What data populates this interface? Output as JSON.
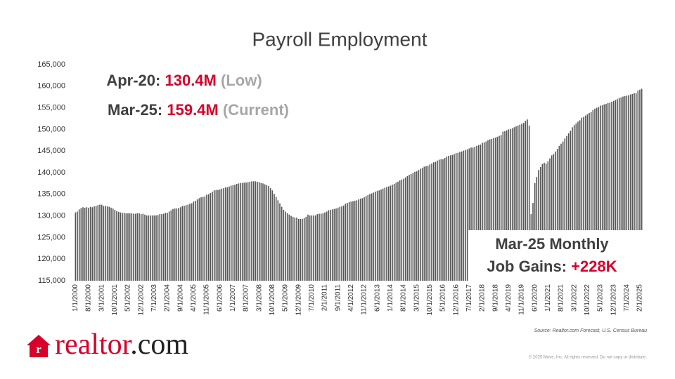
{
  "chart_data": {
    "type": "bar",
    "title": "Payroll Employment",
    "categories": [
      "1/1/2000",
      null,
      null,
      null,
      null,
      null,
      null,
      "8/1/2000",
      null,
      null,
      null,
      null,
      null,
      null,
      "3/1/2001",
      null,
      null,
      null,
      null,
      null,
      null,
      "10/1/2001",
      null,
      null,
      null,
      null,
      null,
      null,
      "5/1/2002",
      null,
      null,
      null,
      null,
      null,
      null,
      "12/1/2002",
      null,
      null,
      null,
      null,
      null,
      null,
      "7/1/2003",
      null,
      null,
      null,
      null,
      null,
      null,
      "2/1/2004",
      null,
      null,
      null,
      null,
      null,
      null,
      "9/1/2004",
      null,
      null,
      null,
      null,
      null,
      null,
      "4/1/2005",
      null,
      null,
      null,
      null,
      null,
      null,
      "11/1/2005",
      null,
      null,
      null,
      null,
      null,
      null,
      "6/1/2006",
      null,
      null,
      null,
      null,
      null,
      null,
      "1/1/2007",
      null,
      null,
      null,
      null,
      null,
      null,
      "8/1/2007",
      null,
      null,
      null,
      null,
      null,
      null,
      "3/1/2008",
      null,
      null,
      null,
      null,
      null,
      null,
      "10/1/2008",
      null,
      null,
      null,
      null,
      null,
      null,
      "5/1/2009",
      null,
      null,
      null,
      null,
      null,
      null,
      "12/1/2009",
      null,
      null,
      null,
      null,
      null,
      null,
      "7/1/2010",
      null,
      null,
      null,
      null,
      null,
      null,
      "2/1/2011",
      null,
      null,
      null,
      null,
      null,
      null,
      "9/1/2011",
      null,
      null,
      null,
      null,
      null,
      null,
      "4/1/2012",
      null,
      null,
      null,
      null,
      null,
      null,
      "11/1/2012",
      null,
      null,
      null,
      null,
      null,
      null,
      "6/1/2013",
      null,
      null,
      null,
      null,
      null,
      null,
      "1/1/2014",
      null,
      null,
      null,
      null,
      null,
      null,
      "8/1/2014",
      null,
      null,
      null,
      null,
      null,
      null,
      "3/1/2015",
      null,
      null,
      null,
      null,
      null,
      null,
      "10/1/2015",
      null,
      null,
      null,
      null,
      null,
      null,
      "5/1/2016",
      null,
      null,
      null,
      null,
      null,
      null,
      "12/1/2016",
      null,
      null,
      null,
      null,
      null,
      null,
      "7/1/2017",
      null,
      null,
      null,
      null,
      null,
      null,
      "2/1/2018",
      null,
      null,
      null,
      null,
      null,
      null,
      "9/1/2018",
      null,
      null,
      null,
      null,
      null,
      null,
      "4/1/2019",
      null,
      null,
      null,
      null,
      null,
      null,
      "11/1/2019",
      null,
      null,
      null,
      null,
      null,
      null,
      "6/1/2020",
      null,
      null,
      null,
      null,
      null,
      null,
      "1/1/2021",
      null,
      null,
      null,
      null,
      null,
      null,
      "8/1/2021",
      null,
      null,
      null,
      null,
      null,
      null,
      "3/1/2022",
      null,
      null,
      null,
      null,
      null,
      null,
      "10/1/2022",
      null,
      null,
      null,
      null,
      null,
      null,
      "5/1/2023",
      null,
      null,
      null,
      null,
      null,
      null,
      "12/1/2023",
      null,
      null,
      null,
      null,
      null,
      null,
      "7/1/2024",
      null,
      null,
      null,
      null,
      null,
      null,
      "2/1/2025",
      null
    ],
    "values": [
      130800,
      131000,
      131500,
      131800,
      132000,
      131900,
      132000,
      131900,
      132100,
      132000,
      132200,
      132300,
      132500,
      132600,
      132600,
      132300,
      132300,
      132200,
      132100,
      131900,
      131700,
      131400,
      131100,
      130900,
      130800,
      130700,
      130700,
      130600,
      130600,
      130600,
      130600,
      130500,
      130500,
      130600,
      130600,
      130400,
      130500,
      130300,
      130100,
      130100,
      130100,
      130100,
      130100,
      130100,
      130200,
      130400,
      130400,
      130500,
      130700,
      130700,
      131000,
      131300,
      131600,
      131700,
      131700,
      131800,
      132000,
      132300,
      132300,
      132500,
      132600,
      132800,
      132900,
      133300,
      133500,
      133800,
      134100,
      134300,
      134400,
      134500,
      134900,
      135000,
      135300,
      135600,
      135900,
      136000,
      136000,
      136100,
      136300,
      136400,
      136600,
      136600,
      136800,
      137000,
      137100,
      137200,
      137400,
      137500,
      137600,
      137600,
      137700,
      137700,
      137800,
      137900,
      138000,
      138000,
      138000,
      137900,
      137800,
      137600,
      137500,
      137300,
      137100,
      136900,
      136400,
      135900,
      135100,
      134400,
      133600,
      132900,
      132100,
      131400,
      131000,
      130600,
      130300,
      130000,
      129800,
      129600,
      129600,
      129300,
      129300,
      129300,
      129500,
      129800,
      130300,
      130100,
      130100,
      130100,
      130100,
      130400,
      130500,
      130500,
      130600,
      130800,
      131000,
      131300,
      131400,
      131500,
      131600,
      131700,
      131900,
      132100,
      132200,
      132400,
      132800,
      133000,
      133200,
      133300,
      133400,
      133500,
      133600,
      133800,
      134000,
      134100,
      134300,
      134600,
      134800,
      135100,
      135200,
      135400,
      135600,
      135800,
      135900,
      136100,
      136300,
      136500,
      136700,
      136800,
      137000,
      137200,
      137400,
      137700,
      137900,
      138200,
      138400,
      138600,
      138900,
      139200,
      139500,
      139700,
      139900,
      140200,
      140300,
      140600,
      140900,
      141100,
      141400,
      141500,
      141600,
      141900,
      142100,
      142400,
      142500,
      142800,
      143000,
      143100,
      143100,
      143400,
      143700,
      143900,
      144000,
      144100,
      144300,
      144500,
      144600,
      144800,
      144900,
      145100,
      145200,
      145400,
      145600,
      145800,
      145800,
      146000,
      146200,
      146400,
      146500,
      146900,
      147000,
      147200,
      147500,
      147700,
      147800,
      148000,
      148100,
      148300,
      148500,
      148700,
      149500,
      149600,
      149800,
      150000,
      150100,
      150300,
      150500,
      150700,
      150900,
      151100,
      151300,
      151500,
      152000,
      152300,
      150900,
      130400,
      133000,
      137600,
      139000,
      140600,
      141300,
      142000,
      142300,
      142100,
      142600,
      143300,
      144000,
      144300,
      144900,
      145500,
      146200,
      146700,
      147200,
      147900,
      148500,
      149100,
      149700,
      150500,
      151000,
      151400,
      151800,
      152100,
      152700,
      152900,
      153200,
      153500,
      153800,
      154000,
      154500,
      154800,
      155000,
      155200,
      155500,
      155600,
      155800,
      155900,
      156100,
      156200,
      156400,
      156600,
      156800,
      157000,
      157300,
      157400,
      157600,
      157700,
      157800,
      157900,
      158100,
      158200,
      158400,
      158400,
      159000,
      159200,
      159400
    ],
    "color": "#555555",
    "ylim": [
      115000,
      165000
    ],
    "yticks": [
      {
        "value": 115000,
        "label": "115,000"
      },
      {
        "value": 120000,
        "label": "120,000"
      },
      {
        "value": 125000,
        "label": "125,000"
      },
      {
        "value": 130000,
        "label": "130,000"
      },
      {
        "value": 135000,
        "label": "135,000"
      },
      {
        "value": 140000,
        "label": "140,000"
      },
      {
        "value": 145000,
        "label": "145,000"
      },
      {
        "value": 150000,
        "label": "150,000"
      },
      {
        "value": 155000,
        "label": "155,000"
      },
      {
        "value": 160000,
        "label": "160,000"
      },
      {
        "value": 165000,
        "label": "165,000"
      }
    ],
    "annotations": [
      {
        "label": "Apr-20:",
        "value": "130.4M",
        "note": "(Low)"
      },
      {
        "label": "Mar-25:",
        "value": "159.4M",
        "note": "(Current)"
      }
    ],
    "callout": {
      "line1": "Mar-25 Monthly",
      "label": "Job Gains:",
      "value": "+228K"
    },
    "source": "Source: Realtor.com Forecast, U.S. Census Bureau"
  },
  "logo": {
    "name": "realtor",
    "suffix": ".com"
  },
  "copyright": "© 2025 Move, Inc. All rights reserved. Do not copy or distribute."
}
